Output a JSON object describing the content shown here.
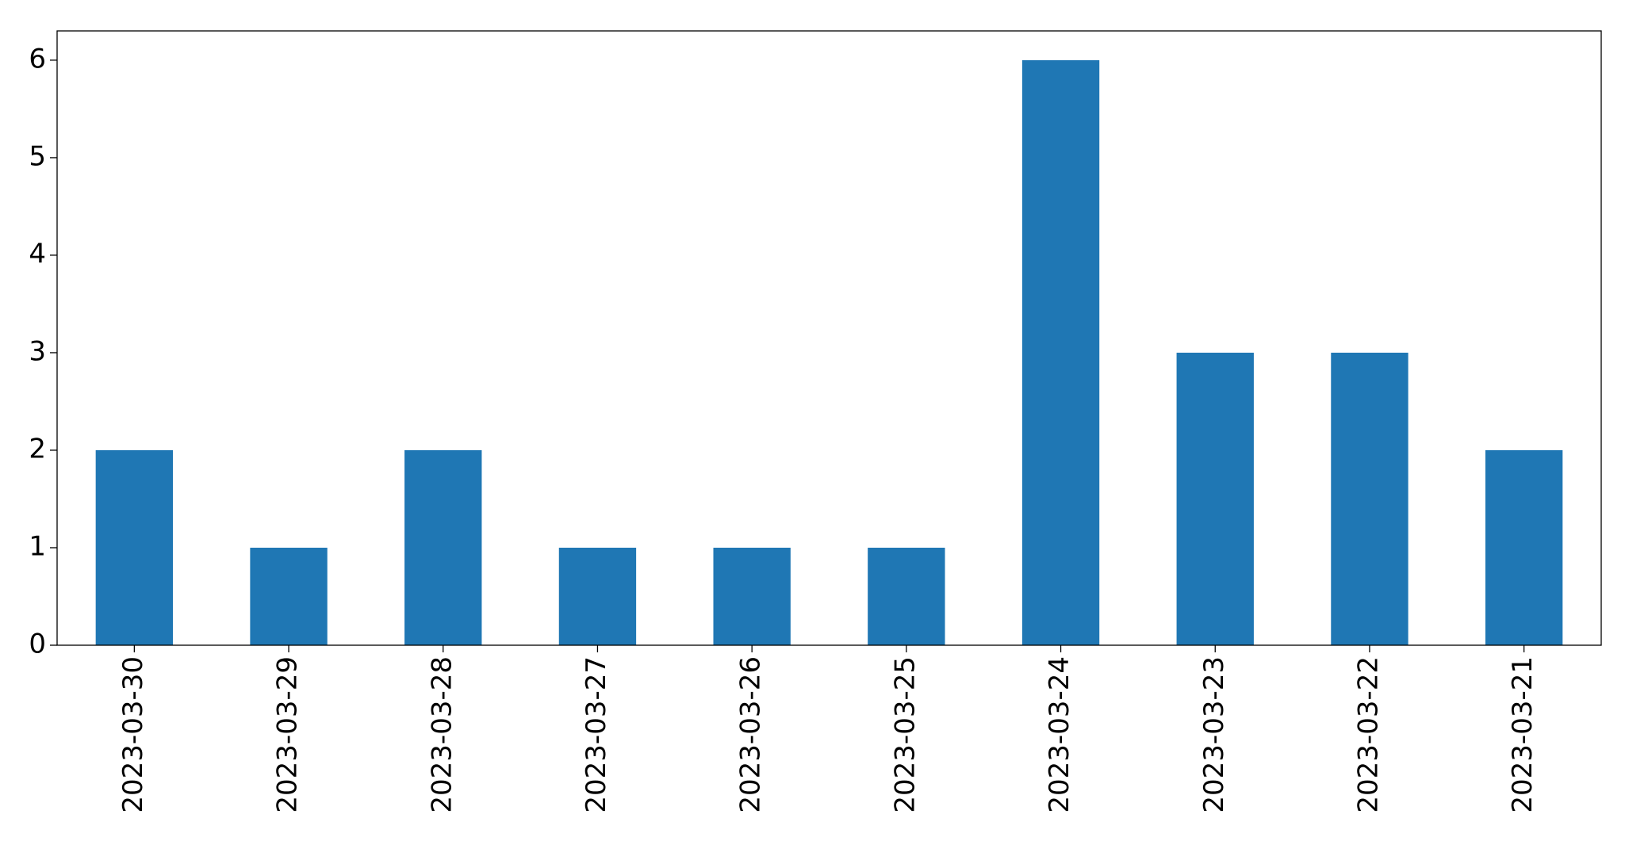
{
  "chart_data": {
    "type": "bar",
    "categories": [
      "2023-03-30",
      "2023-03-29",
      "2023-03-28",
      "2023-03-27",
      "2023-03-26",
      "2023-03-25",
      "2023-03-24",
      "2023-03-23",
      "2023-03-22",
      "2023-03-21"
    ],
    "values": [
      2,
      1,
      2,
      1,
      1,
      1,
      6,
      3,
      3,
      2
    ],
    "color": "#1f77b4",
    "ylim": [
      0,
      6.3
    ],
    "yticks": [
      0,
      1,
      2,
      3,
      4,
      5,
      6
    ],
    "grid": false
  }
}
